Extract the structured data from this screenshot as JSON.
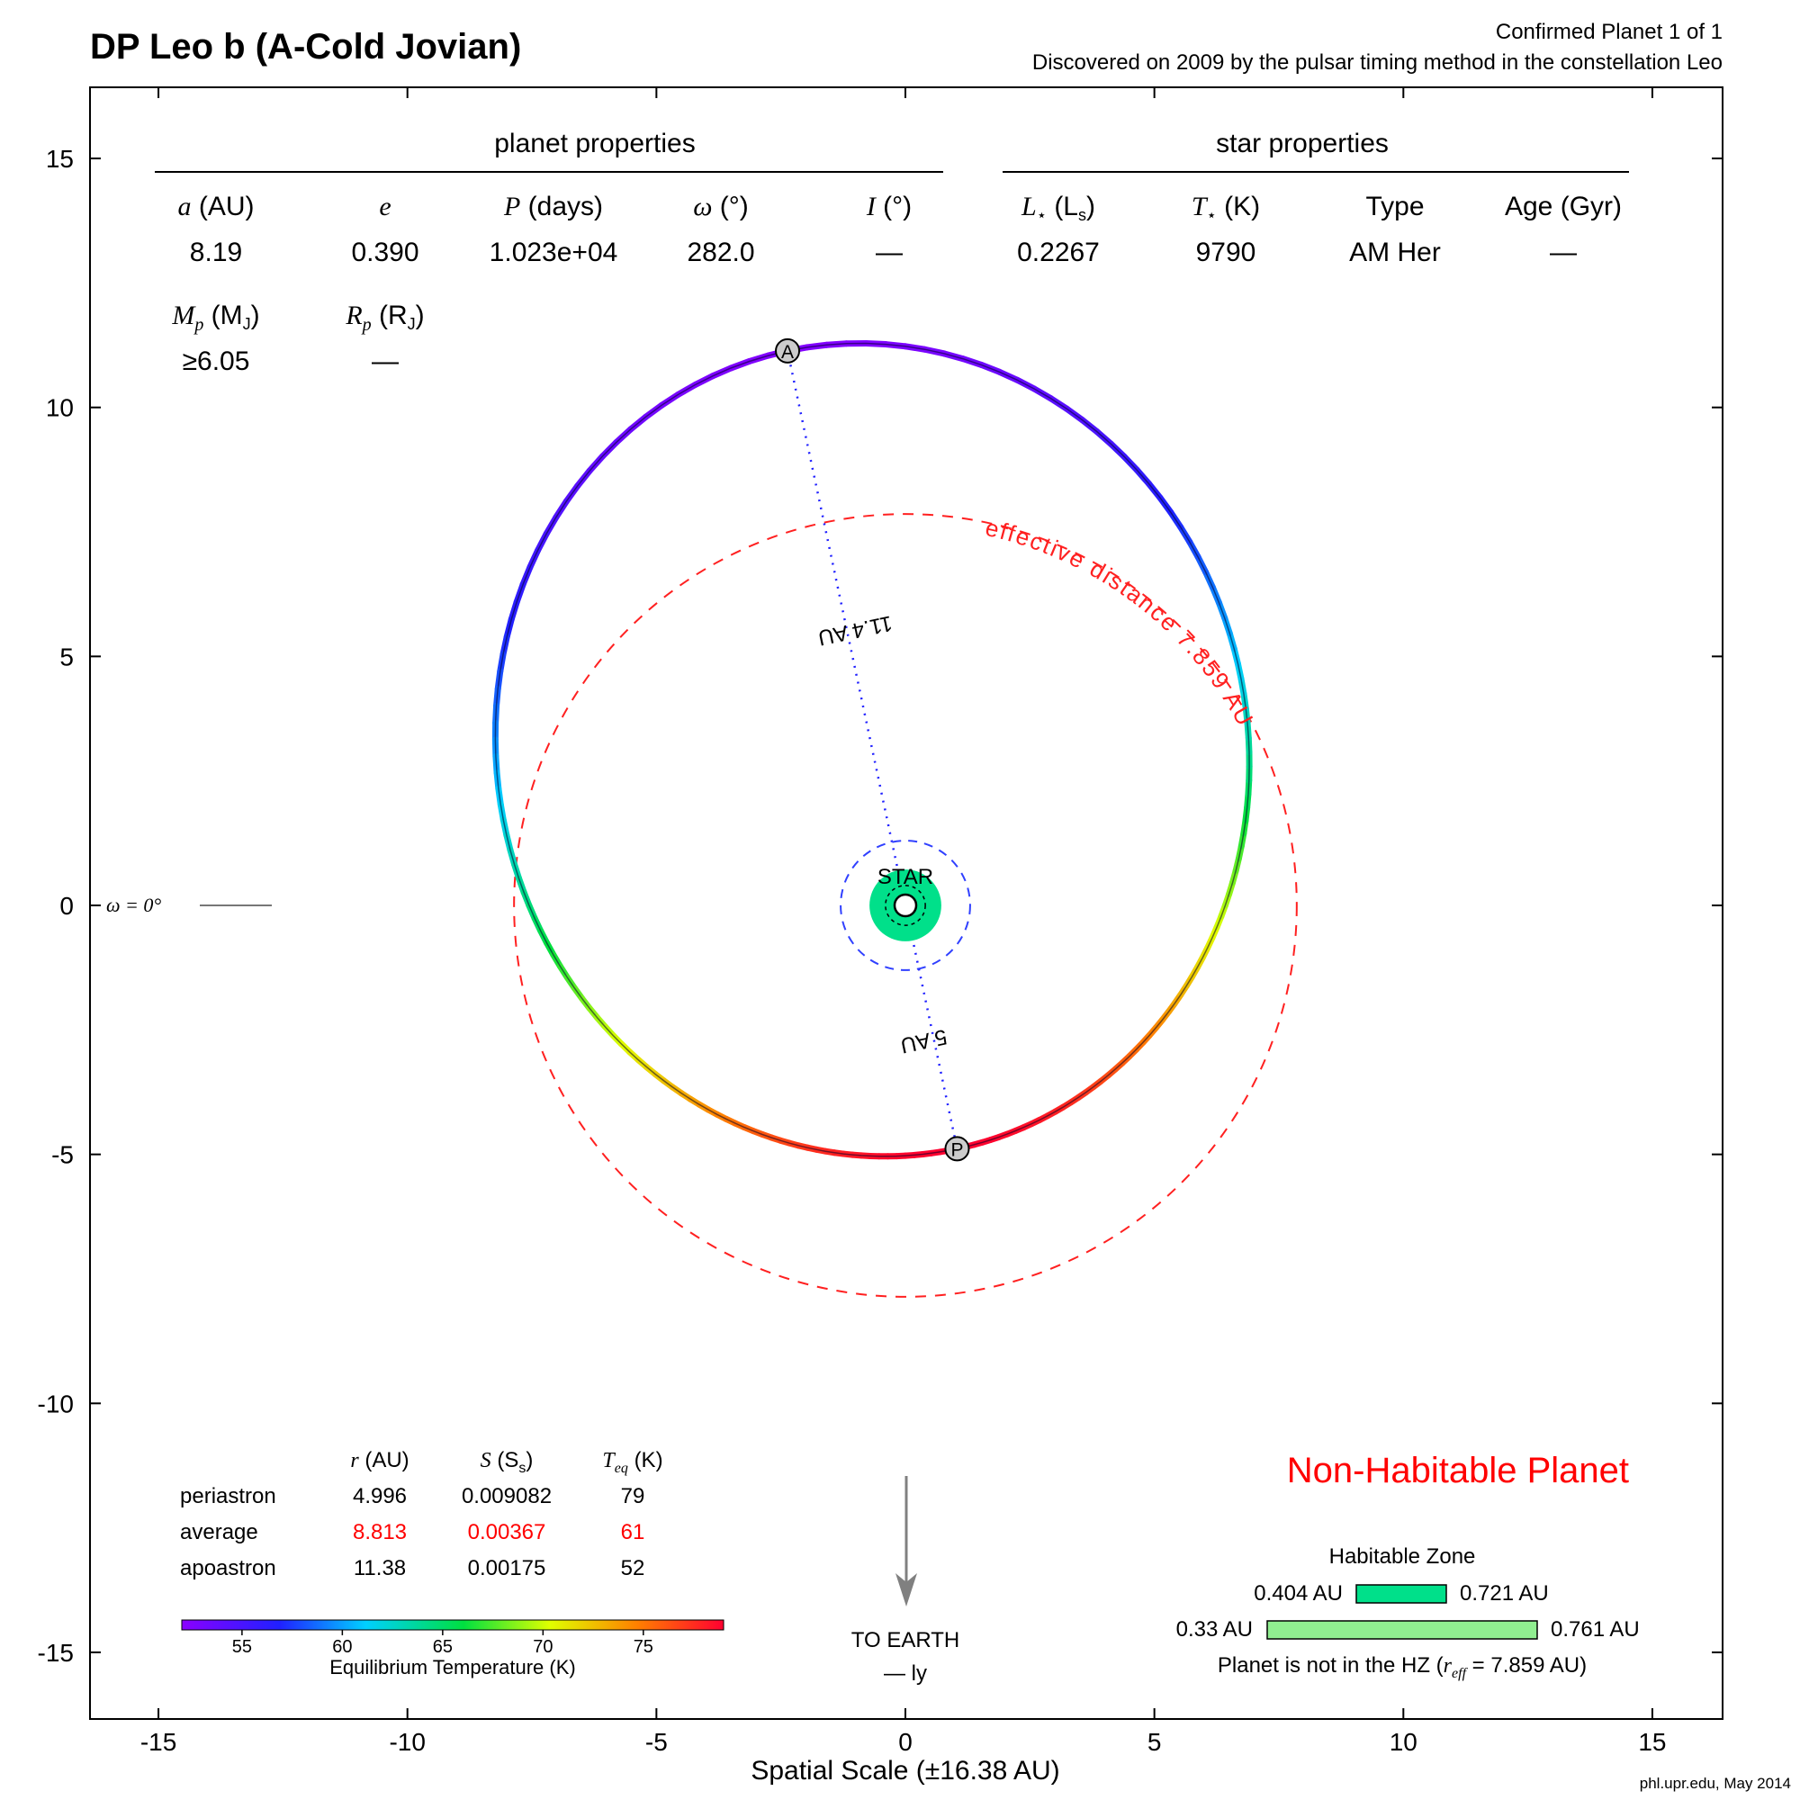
{
  "header": {
    "title": "DP Leo b (A-Cold Jovian)",
    "confirmed": "Confirmed Planet 1 of 1",
    "discovered": "Discovered on 2009 by the pulsar timing method in the constellation Leo"
  },
  "planet_properties": {
    "heading": "planet properties",
    "a_label": "a",
    "a_unit": "(AU)",
    "a_value": "8.19",
    "e_label": "e",
    "e_value": "0.390",
    "P_label": "P",
    "P_unit": "(days)",
    "P_value": "1.023e+04",
    "omega_label": "ω",
    "omega_unit": "(°)",
    "omega_value": "282.0",
    "I_label": "I",
    "I_unit": "(°)",
    "I_value": "—",
    "Mp_label": "M",
    "Mp_sub": "p",
    "Mp_unit": "(M",
    "Mp_unit_sub": "J",
    "Mp_unit_close": ")",
    "Mp_value": "≥6.05",
    "Rp_label": "R",
    "Rp_sub": "p",
    "Rp_unit": "(R",
    "Rp_unit_sub": "J",
    "Rp_unit_close": ")",
    "Rp_value": "—"
  },
  "star_properties": {
    "heading": "star properties",
    "L_label": "L",
    "L_star": "⋆",
    "L_unit": "(L",
    "L_unit_sub": "s",
    "L_unit_close": ")",
    "L_value": "0.2267",
    "T_label": "T",
    "T_star": "⋆",
    "T_unit": "(K)",
    "T_value": "9790",
    "type_label": "Type",
    "type_value": "AM Her",
    "age_label": "Age (Gyr)",
    "age_value": "—"
  },
  "orbit_labels": {
    "effective_distance": "effective distance 7.859 AU",
    "periastron_marker": "P",
    "apoastron_marker": "A",
    "star": "STAR",
    "peri_dist": "5 AU",
    "apo_dist": "11.4 AU",
    "omega_ref": "ω = 0°",
    "to_earth": "TO EARTH",
    "ly": "— ly"
  },
  "distance_table": {
    "col_r": "r",
    "col_r_unit": "(AU)",
    "col_S": "S",
    "col_S_unit": "(S",
    "col_S_unit_sub": "s",
    "col_S_unit_close": ")",
    "col_T": "T",
    "col_T_sub": "eq",
    "col_T_unit": "(K)",
    "rows": [
      {
        "name": "periastron",
        "r": "4.996",
        "S": "0.009082",
        "T": "79"
      },
      {
        "name": "average",
        "r": "8.813",
        "S": "0.00367",
        "T": "61"
      },
      {
        "name": "apoastron",
        "r": "11.38",
        "S": "0.00175",
        "T": "52"
      }
    ]
  },
  "colorbar": {
    "ticks": [
      "55",
      "60",
      "65",
      "70",
      "75"
    ],
    "label": "Equilibrium Temperature (K)"
  },
  "status": {
    "text": "Non-Habitable Planet",
    "color": "#ff0000"
  },
  "habitable_zone": {
    "title": "Habitable Zone",
    "inner_left": "0.404 AU",
    "inner_right": "0.721 AU",
    "outer_left": "0.33 AU",
    "outer_right": "0.761 AU",
    "note_prefix": "Planet is not in the HZ (",
    "note_r": "r",
    "note_sub": "eff",
    "note_suffix": " = 7.859 AU)"
  },
  "footer": {
    "credit": "phl.upr.edu, May 2014"
  },
  "chart_data": {
    "type": "scatter",
    "xlabel": "Spatial Scale (±16.38 AU)",
    "ylabel": "",
    "xlim": [
      -16.38,
      16.38
    ],
    "ylim": [
      -16.38,
      16.38
    ],
    "x_ticks": [
      -15,
      -10,
      -5,
      0,
      5,
      10,
      15
    ],
    "y_ticks": [
      15,
      10,
      5,
      0,
      -5,
      -10,
      -15
    ],
    "orbit": {
      "a": 8.19,
      "e": 0.39,
      "omega_deg": 282.0
    },
    "periastron_distance": 4.996,
    "apoastron_distance": 11.38,
    "effective_distance": 7.859,
    "hz_inner": [
      0.404,
      0.721
    ],
    "hz_outer": [
      0.33,
      0.761
    ],
    "temperature_range": [
      52,
      79
    ]
  }
}
